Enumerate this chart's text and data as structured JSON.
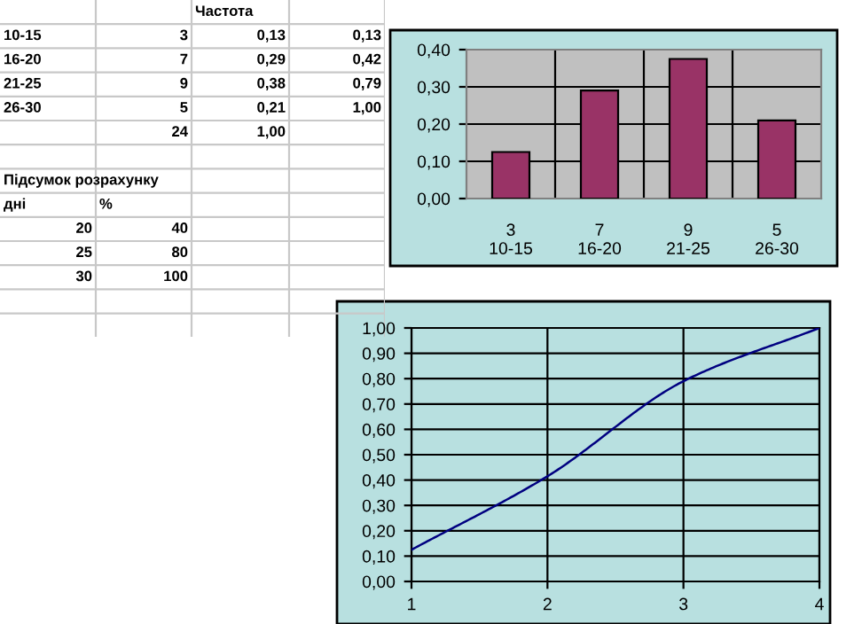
{
  "chart_data": [
    {
      "type": "other",
      "annotations": [
        "Частота",
        "10-15",
        "3",
        "0,13",
        "0,13",
        "16-20",
        "7",
        "0,29",
        "0,42",
        "21-25",
        "9",
        "0,38",
        "0,79",
        "26-30",
        "5",
        "0,21",
        "1,00",
        "24",
        "1,00",
        "Підсумок розрахунку",
        "дні",
        "%",
        "20",
        "40",
        "25",
        "80",
        "30",
        "100"
      ]
    },
    {
      "type": "bar",
      "categories": [
        "3\n10-15",
        "7\n16-20",
        "9\n21-25",
        "5\n26-30"
      ],
      "values": [
        0.125,
        0.29,
        0.375,
        0.21
      ],
      "color": "#993366",
      "ylim": [
        0,
        0.4
      ],
      "yticks": [
        {
          "value": 0,
          "label": "0,00"
        },
        {
          "value": 0.1,
          "label": "0,10"
        },
        {
          "value": 0.2,
          "label": "0,20"
        },
        {
          "value": 0.3,
          "label": "0,30"
        },
        {
          "value": 0.4,
          "label": "0,40"
        }
      ],
      "grid": true
    },
    {
      "type": "line",
      "x": [
        1,
        2,
        3,
        4
      ],
      "values": [
        0.125,
        0.415,
        0.79,
        1.0
      ],
      "color": "#000080",
      "xlim": [
        1,
        4
      ],
      "xticks": [
        1,
        2,
        3,
        4
      ],
      "ylim": [
        0,
        1
      ],
      "yticks": [
        {
          "value": 0,
          "label": "0,00"
        },
        {
          "value": 0.1,
          "label": "0,10"
        },
        {
          "value": 0.2,
          "label": "0,20"
        },
        {
          "value": 0.3,
          "label": "0,30"
        },
        {
          "value": 0.4,
          "label": "0,40"
        },
        {
          "value": 0.5,
          "label": "0,50"
        },
        {
          "value": 0.6,
          "label": "0,60"
        },
        {
          "value": 0.7,
          "label": "0,70"
        },
        {
          "value": 0.8,
          "label": "0,80"
        },
        {
          "value": 0.9,
          "label": "0,90"
        },
        {
          "value": 1,
          "label": "1,00"
        }
      ],
      "grid": true,
      "marker": "none",
      "line_style": "solid"
    }
  ]
}
